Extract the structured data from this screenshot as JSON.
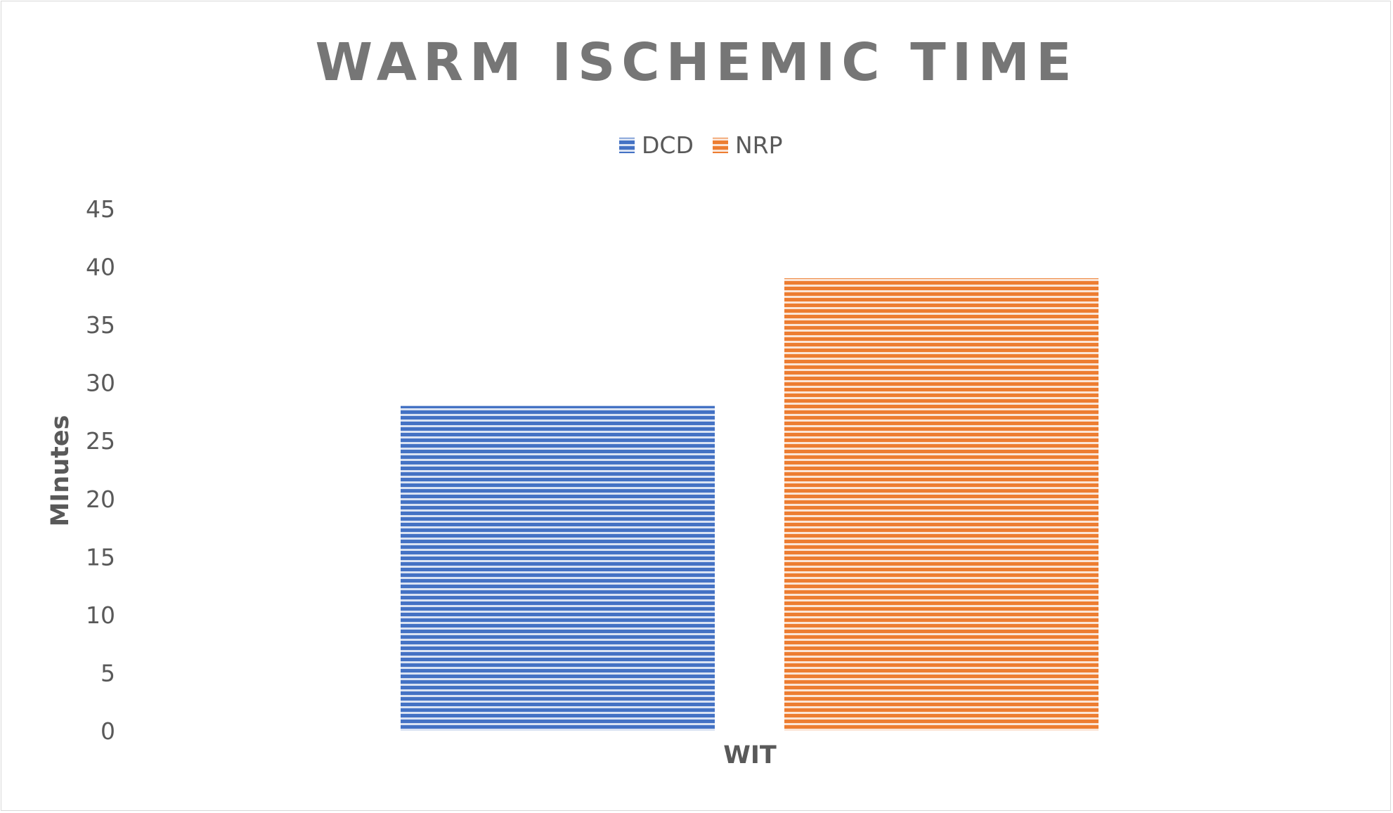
{
  "chart_data": {
    "type": "bar",
    "title": "WARM ISCHEMIC TIME",
    "categories": [
      "WIT"
    ],
    "xlabel": "",
    "ylabel": "MInutes",
    "ylim": [
      0,
      45
    ],
    "yticks": [
      0,
      5,
      10,
      15,
      20,
      25,
      30,
      35,
      40,
      45
    ],
    "grid": false,
    "legend_position": "top",
    "series": [
      {
        "name": "DCD",
        "values": [
          28
        ],
        "color": "#4472C4"
      },
      {
        "name": "NRP",
        "values": [
          39
        ],
        "color": "#ED7D31"
      }
    ]
  }
}
